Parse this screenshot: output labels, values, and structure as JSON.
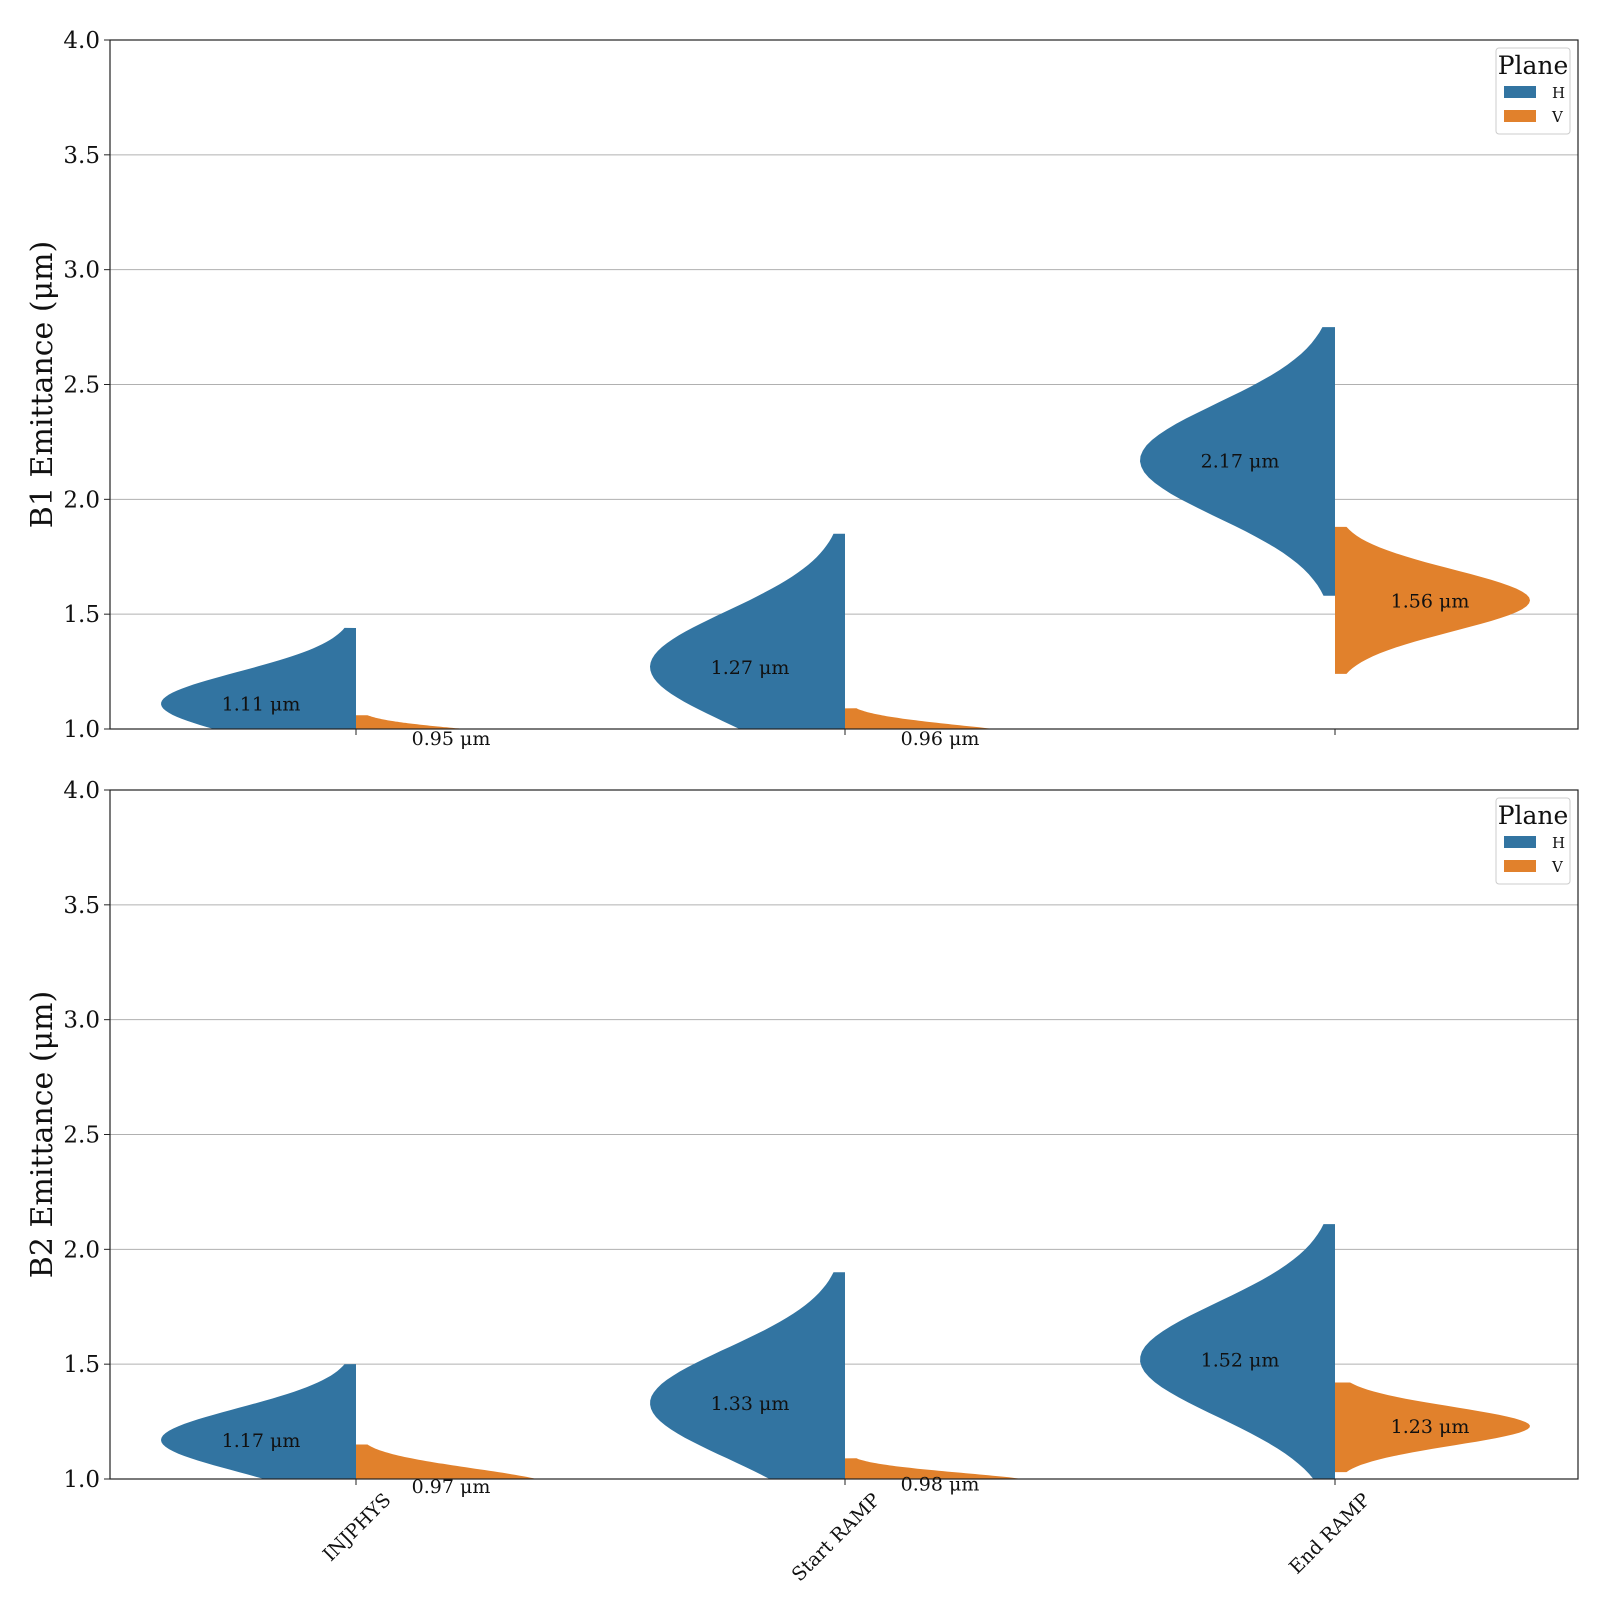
{
  "chart_data": [
    {
      "type": "violin",
      "ylabel": "B1 Emittance (μm)",
      "ylim": [
        1.0,
        4.0
      ],
      "yticks": [
        1.0,
        1.5,
        2.0,
        2.5,
        3.0,
        3.5,
        4.0
      ],
      "grid": "y",
      "categories": [
        "INJPHYS",
        "Start RAMP",
        "End RAMP"
      ],
      "show_category_labels": false,
      "legend": {
        "title": "Plane",
        "position": "top-right",
        "entries": [
          "H",
          "V"
        ]
      },
      "series": [
        {
          "name": "H",
          "color": "#3274a1",
          "side": "left",
          "medians": [
            1.11,
            1.27,
            2.17
          ],
          "labels": [
            "1.11 μm",
            "1.27 μm",
            "2.17 μm"
          ],
          "ranges": [
            [
              1.0,
              1.44
            ],
            [
              1.0,
              1.85
            ],
            [
              1.58,
              2.75
            ]
          ]
        },
        {
          "name": "V",
          "color": "#e1812c",
          "side": "right",
          "medians": [
            0.95,
            0.96,
            1.56
          ],
          "labels": [
            "0.95 μm",
            "0.96 μm",
            "1.56 μm"
          ],
          "ranges": [
            [
              1.0,
              1.06
            ],
            [
              1.0,
              1.09
            ],
            [
              1.24,
              1.88
            ]
          ]
        }
      ]
    },
    {
      "type": "violin",
      "ylabel": "B2 Emittance (μm)",
      "ylim": [
        1.0,
        4.0
      ],
      "yticks": [
        1.0,
        1.5,
        2.0,
        2.5,
        3.0,
        3.5,
        4.0
      ],
      "grid": "y",
      "categories": [
        "INJPHYS",
        "Start RAMP",
        "End RAMP"
      ],
      "show_category_labels": true,
      "legend": {
        "title": "Plane",
        "position": "top-right",
        "entries": [
          "H",
          "V"
        ]
      },
      "series": [
        {
          "name": "H",
          "color": "#3274a1",
          "side": "left",
          "medians": [
            1.17,
            1.33,
            1.52
          ],
          "labels": [
            "1.17 μm",
            "1.33 μm",
            "1.52 μm"
          ],
          "ranges": [
            [
              1.0,
              1.5
            ],
            [
              1.0,
              1.9
            ],
            [
              1.0,
              2.11
            ]
          ]
        },
        {
          "name": "V",
          "color": "#e1812c",
          "side": "right",
          "medians": [
            0.97,
            0.98,
            1.23
          ],
          "labels": [
            "0.97 μm",
            "0.98 μm",
            "1.23 μm"
          ],
          "ranges": [
            [
              1.0,
              1.15
            ],
            [
              1.0,
              1.09
            ],
            [
              1.03,
              1.42
            ]
          ]
        }
      ]
    }
  ]
}
